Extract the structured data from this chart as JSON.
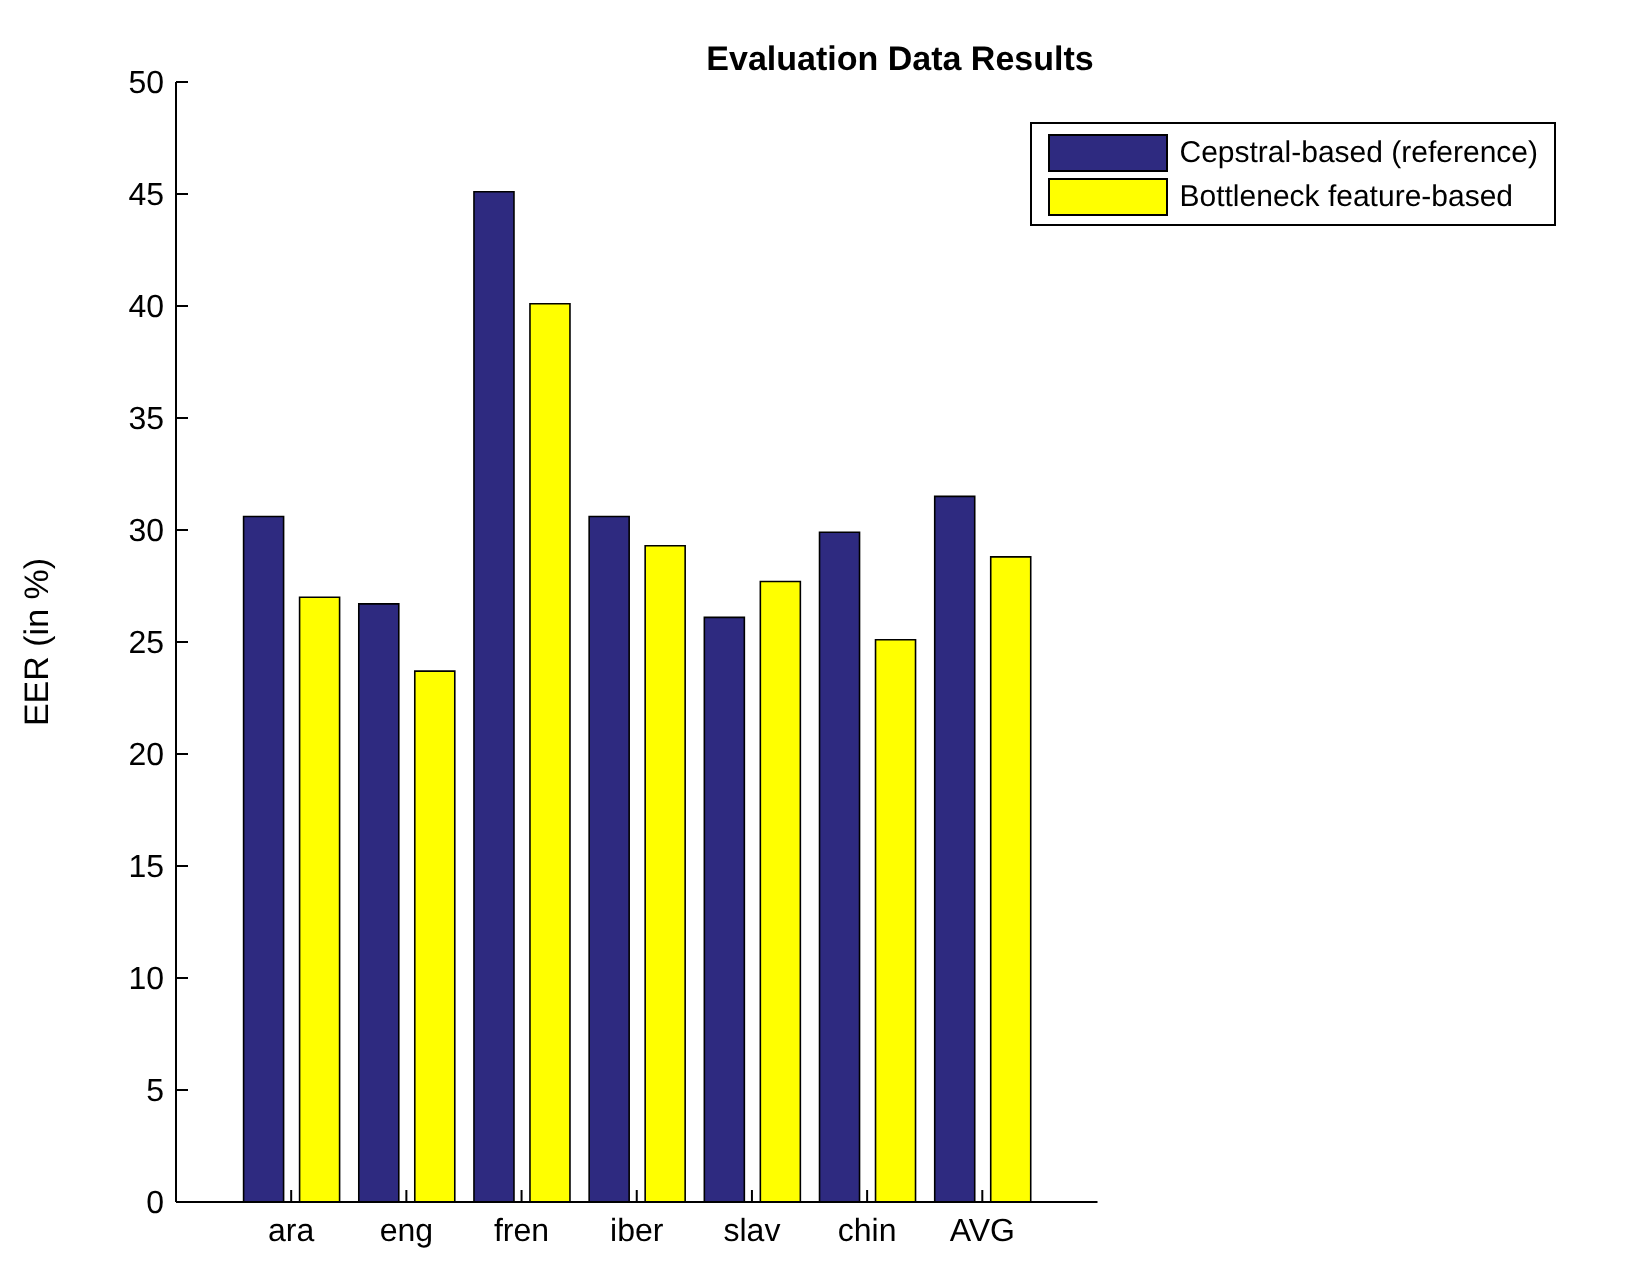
{
  "chart_data": {
    "type": "bar",
    "title": "Evaluation Data Results",
    "ylabel": "EER (in %)",
    "categories": [
      "ara",
      "eng",
      "fren",
      "iber",
      "slav",
      "chin",
      "AVG"
    ],
    "series": [
      {
        "name": "Cepstral-based (reference)",
        "color": "#2e2a80",
        "values": [
          30.6,
          26.7,
          45.1,
          30.6,
          26.1,
          29.9,
          31.5
        ]
      },
      {
        "name": "Bottleneck feature-based",
        "color": "#ffff00",
        "values": [
          27.0,
          23.7,
          40.1,
          29.3,
          27.7,
          25.1,
          28.8
        ]
      }
    ],
    "ylim": [
      0,
      50
    ],
    "yticks": [
      0,
      5,
      10,
      15,
      20,
      25,
      30,
      35,
      40,
      45,
      50
    ],
    "grid": false,
    "legend": "top right"
  }
}
